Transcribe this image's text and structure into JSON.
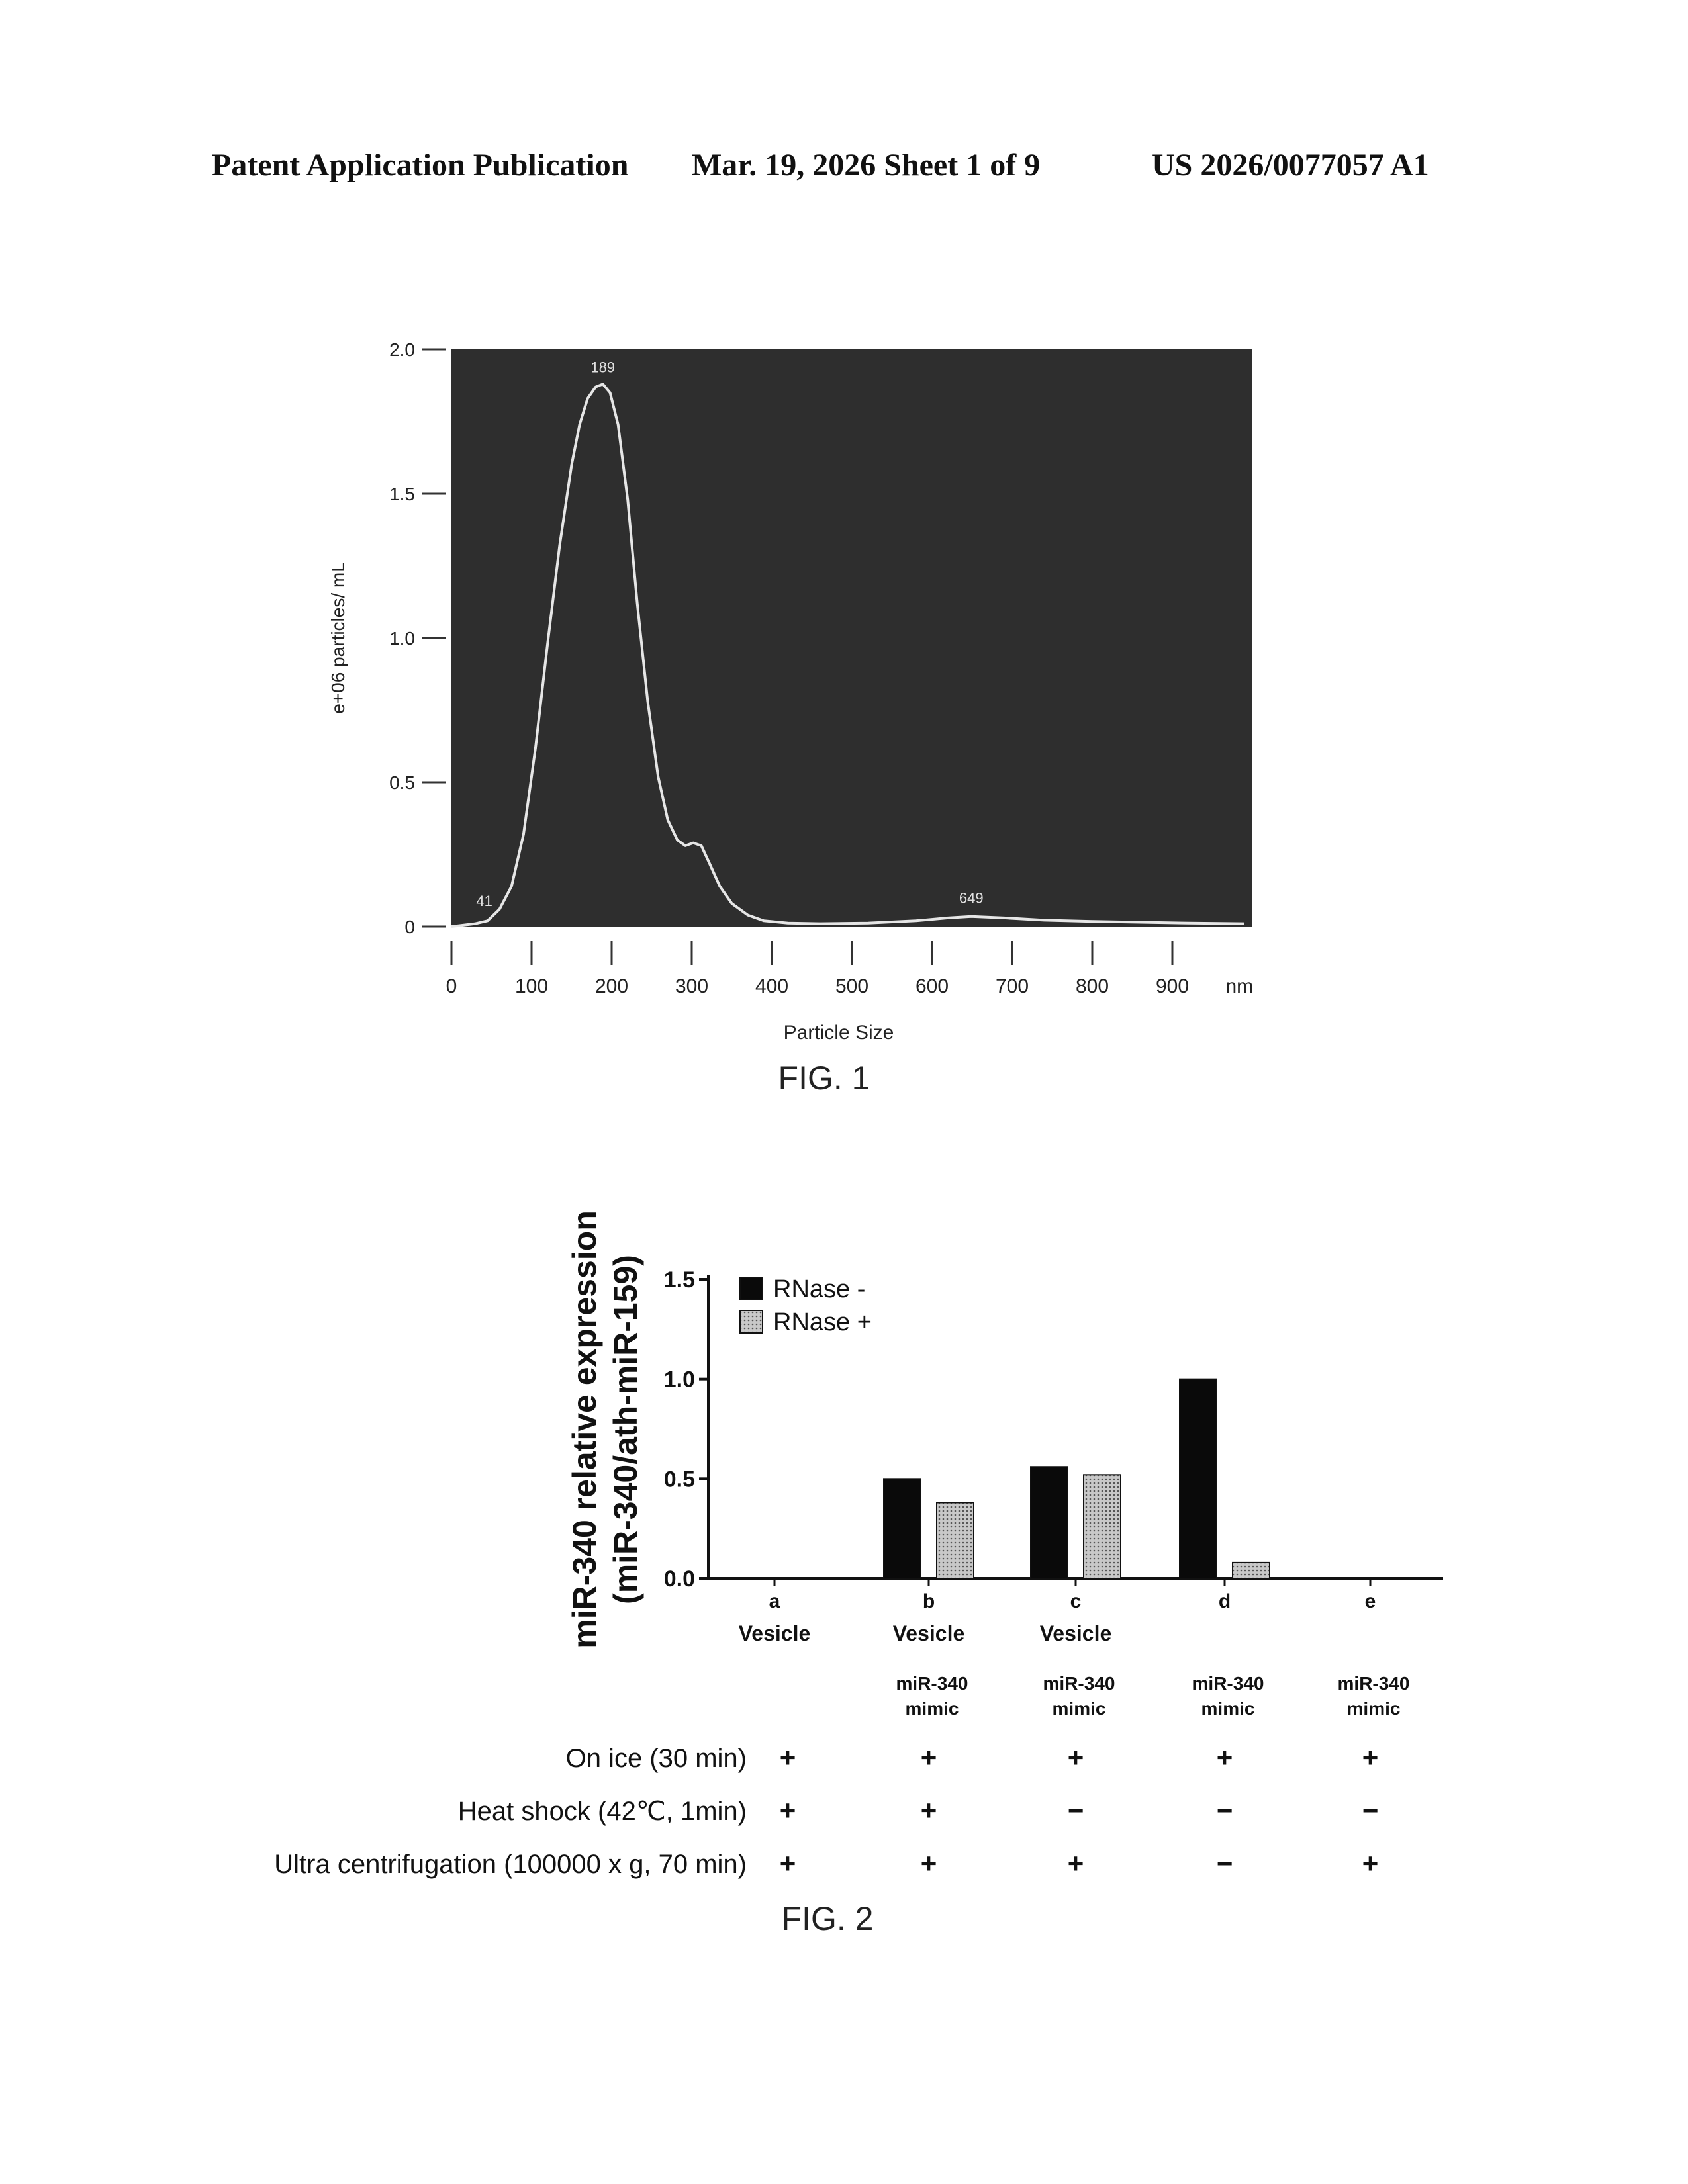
{
  "header": {
    "publication": "Patent Application Publication",
    "date_sheet": "Mar. 19, 2026  Sheet 1 of 9",
    "number": "US 2026/0077057 A1"
  },
  "fig1": {
    "caption": "FIG. 1",
    "chart_data": {
      "type": "line",
      "xlabel": "Particle Size",
      "x_unit": "nm",
      "ylabel": "e+06 particles/ mL",
      "xlim": [
        0,
        1000
      ],
      "ylim": [
        0,
        2.0
      ],
      "x_ticks": [
        0,
        100,
        200,
        300,
        400,
        500,
        600,
        700,
        800,
        900
      ],
      "y_ticks": [
        0,
        0.5,
        1.0,
        1.5,
        2.0
      ],
      "y_tick_labels": [
        "0",
        "0.5",
        "1.0",
        "1.5",
        "2.0"
      ],
      "background": "#2e2e2e",
      "line_color": "#e6e6e6",
      "peak_labels": [
        {
          "x": 41,
          "y": 0.03,
          "label": "41"
        },
        {
          "x": 189,
          "y": 1.88,
          "label": "189"
        },
        {
          "x": 649,
          "y": 0.04,
          "label": "649"
        }
      ],
      "series": [
        {
          "x": [
            0,
            30,
            45,
            60,
            75,
            90,
            105,
            120,
            135,
            150,
            160,
            170,
            180,
            189,
            198,
            208,
            220,
            232,
            245,
            258,
            270,
            282,
            292,
            302,
            312,
            322,
            335,
            350,
            370,
            390,
            420,
            460,
            520,
            580,
            620,
            649,
            690,
            740,
            800,
            860,
            920,
            990
          ],
          "y": [
            0.0,
            0.01,
            0.02,
            0.06,
            0.14,
            0.32,
            0.62,
            0.98,
            1.32,
            1.6,
            1.74,
            1.83,
            1.87,
            1.88,
            1.85,
            1.74,
            1.48,
            1.12,
            0.78,
            0.52,
            0.37,
            0.3,
            0.28,
            0.29,
            0.28,
            0.22,
            0.14,
            0.08,
            0.04,
            0.02,
            0.012,
            0.01,
            0.012,
            0.02,
            0.03,
            0.035,
            0.03,
            0.022,
            0.018,
            0.015,
            0.012,
            0.01
          ]
        }
      ]
    }
  },
  "fig2": {
    "caption": "FIG. 2",
    "chart_data": {
      "type": "bar",
      "ylabel_line1": "miR-340 relative expression",
      "ylabel_line2": "(miR-340/ath-miR-159)",
      "ylim": [
        0,
        1.5
      ],
      "y_ticks": [
        0,
        0.5,
        1.0,
        1.5
      ],
      "y_tick_labels": [
        "0.0",
        "0.5",
        "1.0",
        "1.5"
      ],
      "categories": [
        "a",
        "b",
        "c",
        "d",
        "e"
      ],
      "sublabels_vesicle": [
        "Vesicle",
        "Vesicle",
        "Vesicle",
        "",
        ""
      ],
      "sublabels_mimic": [
        [
          "",
          ""
        ],
        [
          "miR-340",
          "mimic"
        ],
        [
          "miR-340",
          "mimic"
        ],
        [
          "miR-340",
          "mimic"
        ],
        [
          "miR-340",
          "mimic"
        ]
      ],
      "series": [
        {
          "name": "RNase -",
          "color": "#0a0a0a",
          "values": [
            0,
            0.5,
            0.56,
            1.0,
            0
          ]
        },
        {
          "name": "RNase +",
          "color": "#b3b3b3",
          "values": [
            0,
            0.38,
            0.52,
            0.08,
            0
          ]
        }
      ],
      "conditions": [
        {
          "label": "On ice (30 min)",
          "marks": [
            "+",
            "+",
            "+",
            "+",
            "+"
          ]
        },
        {
          "label": "Heat shock (42℃, 1min)",
          "marks": [
            "+",
            "+",
            "−",
            "−",
            "−"
          ]
        },
        {
          "label": "Ultra centrifugation (100000 x g, 70 min)",
          "marks": [
            "+",
            "+",
            "+",
            "−",
            "+"
          ]
        }
      ]
    }
  }
}
